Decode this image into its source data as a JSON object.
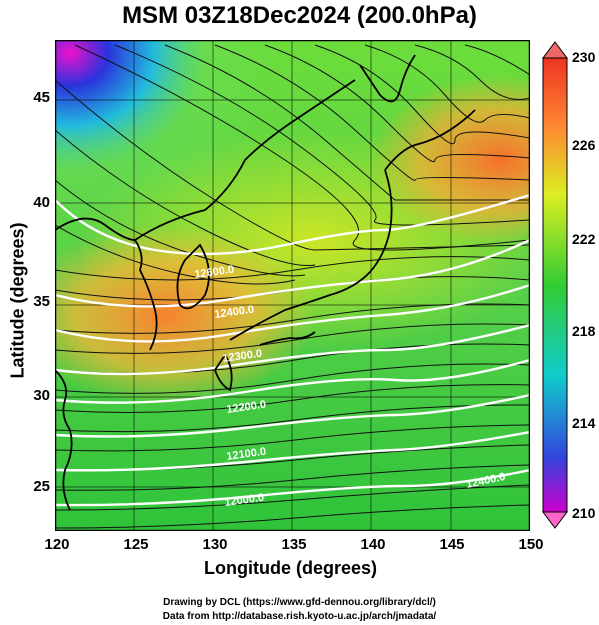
{
  "title": "MSM 03Z18Dec2024 (200.0hPa)",
  "axes": {
    "xlabel": "Longitude (degrees)",
    "ylabel": "Latitude  (degrees)",
    "xticks": [
      "120",
      "125",
      "130",
      "135",
      "140",
      "145",
      "150"
    ],
    "yticks": [
      "45",
      "40",
      "35",
      "30",
      "25"
    ]
  },
  "colorbar": {
    "ticks": [
      "230",
      "226",
      "222",
      "218",
      "214",
      "210"
    ],
    "range": [
      210,
      230
    ],
    "colors": [
      "#cc00cc",
      "#3344dd",
      "#11cccc",
      "#33cc33",
      "#ddee22",
      "#ff8833",
      "#ee3322"
    ]
  },
  "contour_labels": [
    "12000.0",
    "12100.0",
    "12200.0",
    "12300.0",
    "12400.0",
    "12600.0"
  ],
  "footer": {
    "line1": "Drawing by DCL (https://www.gfd-dennou.org/library/dcl/)",
    "line2": "Data from http://database.rish.kyoto-u.ac.jp/arch/jmadata/"
  }
}
